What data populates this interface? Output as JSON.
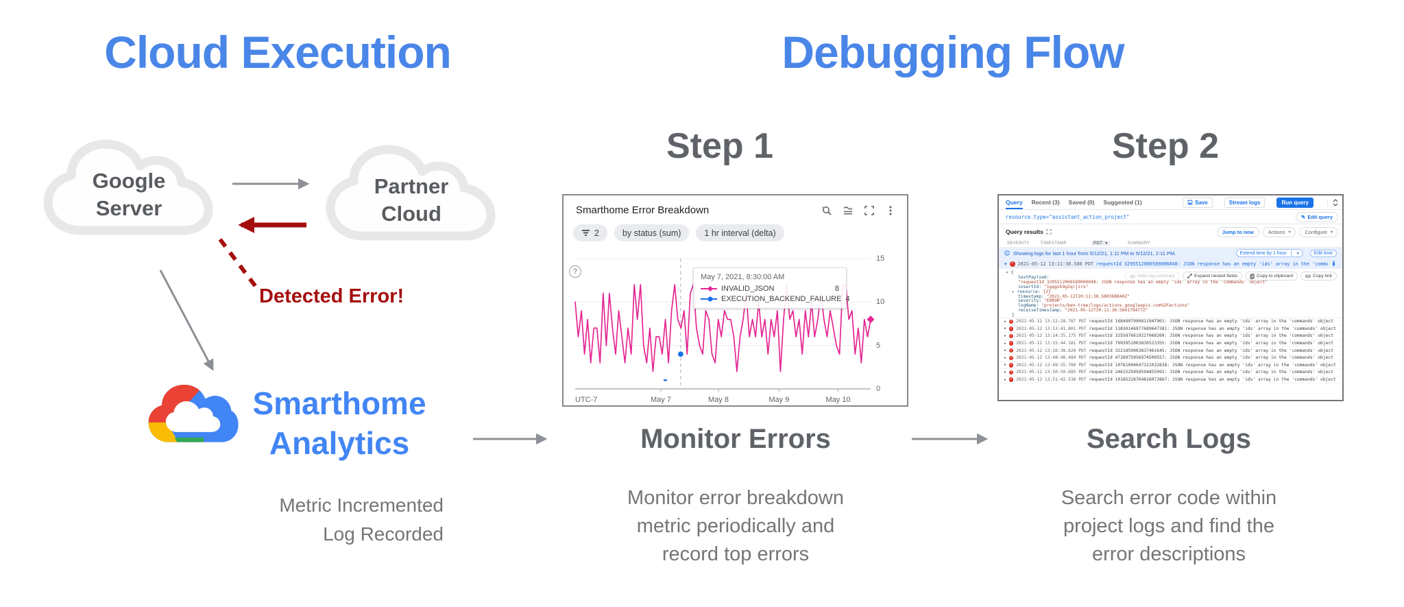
{
  "titles": {
    "left": "Cloud Execution",
    "right": "Debugging Flow"
  },
  "colors": {
    "accent_blue": "#4A86E8",
    "logo_blue": "#4285F4",
    "dark_red": "#A50E0E",
    "heading_gray": "#5F6368",
    "body_gray": "#757575",
    "chart_pink": "#E52592",
    "chart_blue": "#1A73E8"
  },
  "left_flow": {
    "google_server": "Google\nServer",
    "partner_cloud": "Partner\nCloud",
    "detected_error": "Detected Error!",
    "smarthome": "Smarthome\nAnalytics",
    "caption": "Metric Incremented\nLog Recorded"
  },
  "step1": {
    "heading": "Step 1",
    "chips": [
      "2",
      "by status (sum)",
      "1 hr interval (delta)"
    ],
    "subheading": "Monitor Errors",
    "description": "Monitor error breakdown\nmetric periodically and\nrecord top errors"
  },
  "step2": {
    "heading": "Step 2",
    "subheading": "Search Logs",
    "description": "Search error code within\nproject logs and find the\nerror descriptions",
    "panel": {
      "tabs": [
        "Query",
        "Recent (3)",
        "Saved (0)",
        "Suggested (1)"
      ],
      "save_label": "Save",
      "stream_logs_label": "Stream logs",
      "run_query_label": "Run query",
      "query": "resource.type=\"assistant_action_project\"",
      "edit_query_label": "Edit query",
      "results_label": "Query results",
      "jump_label": "Jump to now",
      "actions_label": "Actions",
      "configure_label": "Configure",
      "columns": [
        "SEVERITY",
        "TIMESTAMP",
        "PDT",
        "SUMMARY"
      ],
      "info_text": "Showing logs for last 1 hour from 5/12/21, 1:11 PM to 5/12/21, 2:11 PM.",
      "extend_label": "Extend time by 1 hour",
      "edit_time_label": "Edit time",
      "expanded_row": {
        "time": "2021-05-12 13:11:38.580 PDT",
        "msg": "requestId 3295512006589006048: JSON response has an empty 'ids' array in the 'commands' object"
      },
      "log_actions": [
        "Hide log summary",
        "Expand nested fields",
        "Copy to clipboard",
        "Copy link"
      ],
      "json_lines": [
        {
          "chev": "▾",
          "text": "{",
          "ind": 0
        },
        {
          "key": "textPayload:",
          "ind": 2
        },
        {
          "val": "\"requestId 3295512006589006048: JSON response has an empty 'ids' array in the 'commands' object\"",
          "ind": 2
        },
        {
          "key": "insertId:",
          "val": "\"1gqguh9g2qrjzrs\"",
          "ind": 2
        },
        {
          "chev": "▸",
          "key": "resource:",
          "val": "{2}",
          "ind": 1
        },
        {
          "key": "timestamp:",
          "val": "\"2021-05-12T20:11:38.580368840Z\"",
          "ind": 2
        },
        {
          "key": "severity:",
          "val": "\"ERROR\"",
          "ind": 2
        },
        {
          "key": "logName:",
          "val": "\"projects/ben-tree/logs/actions.googleapis.com%2Factions\"",
          "ind": 2
        },
        {
          "key": "receiveTimestamp:",
          "val": "\"2021-05-12T20:11:38.584179477Z\"",
          "ind": 2
        },
        {
          "text": "}",
          "ind": 1
        }
      ],
      "rows": [
        {
          "time": "2021-05-12 13:12:28.787 PDT",
          "msg": "requestId 1684907990811947901: JSON response has an empty 'ids' array in the 'commands' object"
        },
        {
          "time": "2021-05-12 13:13:41.801 PDT",
          "msg": "requestId 13830146977689647381: JSON response has an empty 'ids' array in the 'commands' object"
        },
        {
          "time": "2021-05-12 13:14:35.175 PDT",
          "msg": "requestId 3255876619227068260: JSON response has an empty 'ids' array in the 'commands' object"
        },
        {
          "time": "2021-05-12 13:15:44.181 PDT",
          "msg": "requestId 7093951003830523355: JSON response has an empty 'ids' array in the 'commands' object"
        },
        {
          "time": "2021-05-12 13:16:38.620 PDT",
          "msg": "requestId 3221859903837461645: JSON response has an empty 'ids' array in the 'commands' object"
        },
        {
          "time": "2021-05-12 13:48:48.484 PDT",
          "msg": "requestId 4728975056974509557: JSON response has an empty 'ids' array in the 'commands' object"
        },
        {
          "time": "2021-05-12 13:49:35.780 PDT",
          "msg": "requestId 10781094647121032838: JSON response has an empty 'ids' array in the 'commands' object"
        },
        {
          "time": "2021-05-12 13:50:50.685 PDT",
          "msg": "requestId 2461525058594855992: JSON response has an empty 'ids' array in the 'commands' object"
        },
        {
          "time": "2021-05-12 13:51:42.538 PDT",
          "msg": "requestId 10185228764816073867: JSON response has an empty 'ids' array in the 'commands' object"
        }
      ]
    }
  },
  "chart_data": {
    "type": "line",
    "title": "Smarthome Error Breakdown",
    "xlabel": "",
    "ylabel": "",
    "x_axis_note": "UTC-7",
    "ylim": [
      0,
      15
    ],
    "yticks": [
      0,
      5,
      10,
      15
    ],
    "xticks": [
      {
        "label": "May 7",
        "pos": 0.29
      },
      {
        "label": "May 8",
        "pos": 0.485
      },
      {
        "label": "May 9",
        "pos": 0.69
      },
      {
        "label": "May 10",
        "pos": 0.89
      }
    ],
    "grid": true,
    "legend_position": "tooltip",
    "cursor_pos": 0.357,
    "series": [
      {
        "name": "INVALID_JSON",
        "color": "#E52592",
        "marker": "diamond",
        "values": [
          10,
          6,
          9,
          4,
          8,
          3,
          7,
          7,
          3,
          11,
          5,
          11,
          7,
          4,
          9,
          6,
          3,
          7,
          4,
          12,
          8,
          12,
          5,
          3,
          7,
          2,
          6,
          6,
          4,
          8,
          3,
          9,
          12,
          8,
          7,
          9,
          4,
          11,
          12,
          7,
          5,
          4,
          9,
          8,
          4,
          3,
          8,
          6,
          9,
          8,
          8,
          6,
          2,
          6,
          8,
          11,
          6,
          8,
          6,
          10,
          6,
          8,
          4,
          8,
          6,
          9,
          2,
          8,
          12,
          8,
          9,
          6,
          8,
          4,
          9,
          6,
          10,
          6,
          8,
          11,
          8,
          6,
          9,
          7,
          5,
          4,
          12,
          12,
          8,
          9,
          4,
          7,
          3,
          8,
          6,
          8
        ]
      },
      {
        "name": "EXECUTION_BACKEND_FAILURE",
        "color": "#1A73E8",
        "marker": "circle",
        "visible_points": [
          {
            "pos": 0.357,
            "value": 4
          },
          {
            "pos": 0.305,
            "value": 1
          }
        ]
      }
    ],
    "tooltip": {
      "title": "May 7, 2021, 8:30:00 AM",
      "rows": [
        {
          "name": "INVALID_JSON",
          "value": 8
        },
        {
          "name": "EXECUTION_BACKEND_FAILURE",
          "value": 4
        }
      ]
    }
  }
}
